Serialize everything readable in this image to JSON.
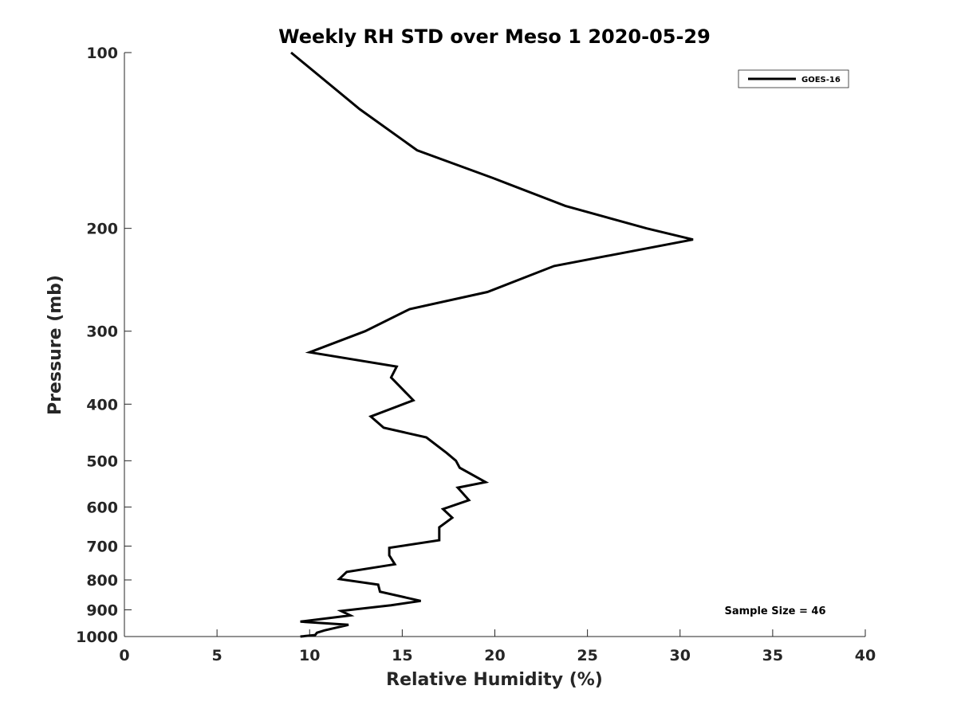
{
  "chart_data": {
    "type": "line",
    "title": "Weekly RH STD over Meso 1 2020-05-29",
    "xlabel": "Relative Humidity (%)",
    "ylabel": "Pressure (mb)",
    "xlim": [
      0,
      40
    ],
    "ylim": [
      100,
      1000
    ],
    "y_scale": "log",
    "y_reversed": true,
    "x_ticks": [
      0,
      5,
      10,
      15,
      20,
      25,
      30,
      35,
      40
    ],
    "y_ticks": [
      100,
      200,
      300,
      400,
      500,
      600,
      700,
      800,
      900,
      1000
    ],
    "grid": false,
    "legend_position": "top-right",
    "series": [
      {
        "name": "GOES-16",
        "color": "#000000",
        "x": [
          9.0,
          12.7,
          15.8,
          19.9,
          23.8,
          28.2,
          30.7,
          23.2,
          19.6,
          15.4,
          13.0,
          10.0,
          14.7,
          14.4,
          15.6,
          13.3,
          14.0,
          16.3,
          17.4,
          17.9,
          18.1,
          19.5,
          18.0,
          18.6,
          17.2,
          17.7,
          17.0,
          17.0,
          14.3,
          14.3,
          14.6,
          12.0,
          11.6,
          13.7,
          13.8,
          16.0,
          14.4,
          11.7,
          12.2,
          9.5,
          12.1,
          10.8,
          10.4,
          10.3,
          9.5
        ],
        "y": [
          100,
          125,
          147,
          164,
          183,
          200,
          209,
          232,
          257,
          275,
          300,
          326,
          345,
          360,
          394,
          420,
          439,
          456,
          485,
          500,
          514,
          544,
          556,
          584,
          605,
          626,
          650,
          684,
          705,
          726,
          752,
          775,
          797,
          815,
          838,
          869,
          884,
          904,
          920,
          943,
          955,
          976,
          985,
          994,
          1000
        ]
      }
    ],
    "annotation": "Sample Size = 46"
  }
}
